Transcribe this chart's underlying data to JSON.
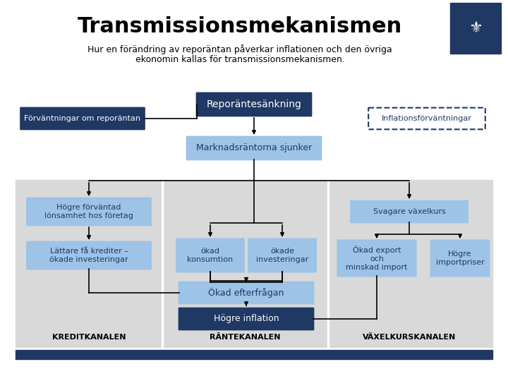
{
  "title": "Transmissionsmekanismen",
  "subtitle_line1": "Hur en förändring av reporäntan påverkar inflationen och den övriga",
  "subtitle_line2": "ekonomin kallas för transmissionsmekanismen.",
  "bg_color": "#ffffff",
  "dark_blue": "#1f3864",
  "light_blue": "#9dc3e6",
  "gray_bg": "#d9d9d9",
  "footer_bar_color": "#1f3864"
}
